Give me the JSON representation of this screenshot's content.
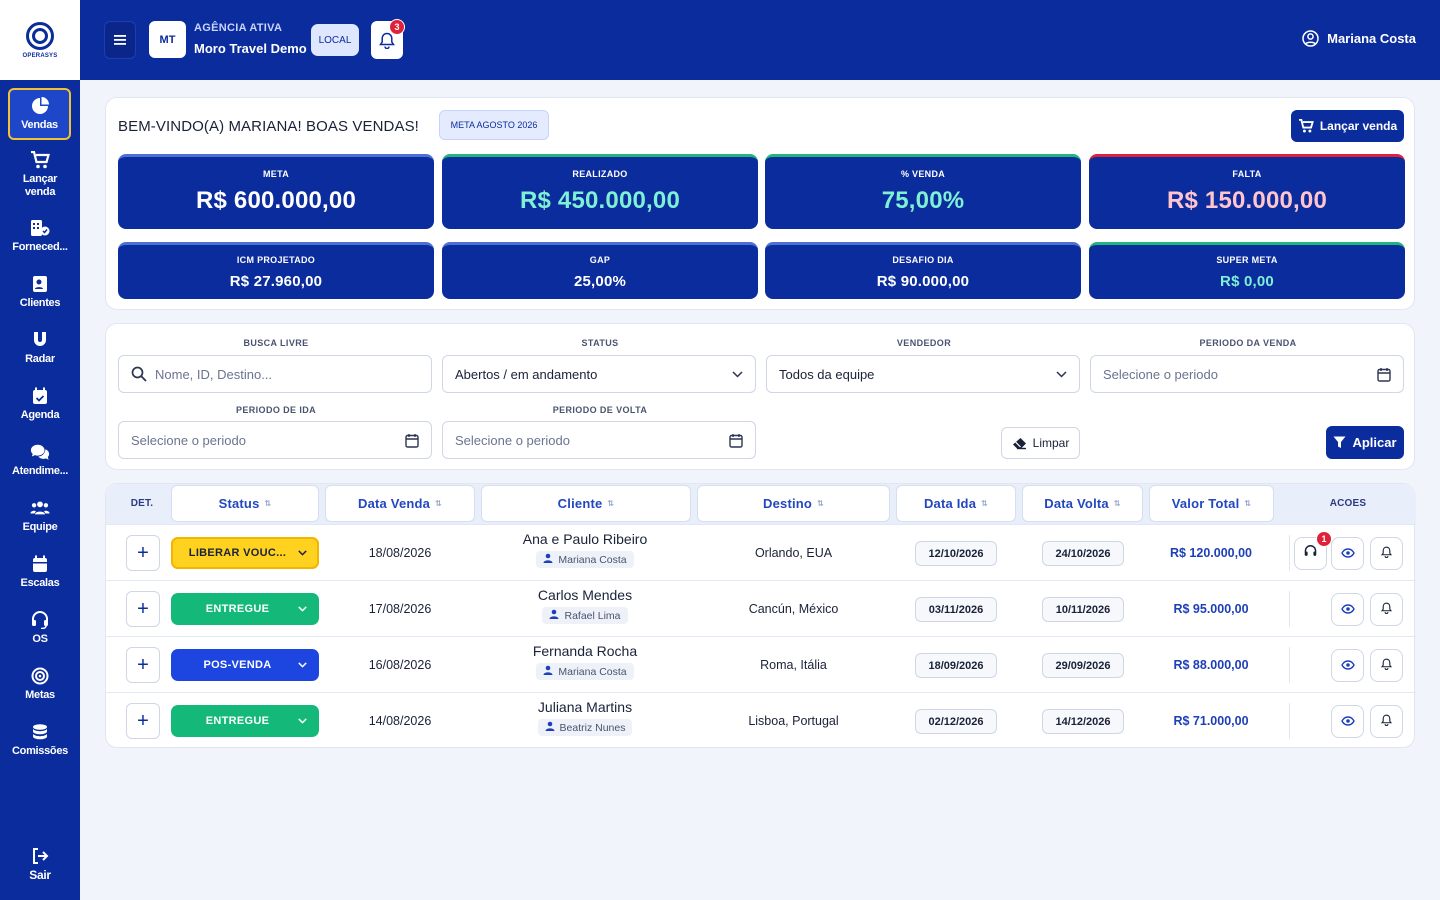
{
  "app": {
    "logo_text": "OPERASYS"
  },
  "sidebar": {
    "items": [
      {
        "label": "Vendas",
        "icon": "pie-chart-icon"
      },
      {
        "label": "Lançar venda",
        "icon": "cart-icon"
      },
      {
        "label": "Forneced...",
        "icon": "supplier-icon"
      },
      {
        "label": "Clientes",
        "icon": "contact-card-icon"
      },
      {
        "label": "Radar",
        "icon": "magnet-icon"
      },
      {
        "label": "Agenda",
        "icon": "calendar-check-icon"
      },
      {
        "label": "Atendime...",
        "icon": "chat-icon"
      },
      {
        "label": "Equipe",
        "icon": "team-icon"
      },
      {
        "label": "Escalas",
        "icon": "calendar-icon"
      },
      {
        "label": "OS",
        "icon": "headset-icon"
      },
      {
        "label": "Metas",
        "icon": "target-icon"
      },
      {
        "label": "Comissões",
        "icon": "coins-icon"
      }
    ],
    "logout": "Sair"
  },
  "header": {
    "agency_initials": "MT",
    "agency_label": "AGÊNCIA ATIVA",
    "agency_name": "Moro Travel Demo",
    "env_chip": "LOCAL",
    "notifications": "3",
    "user_name": "Mariana Costa"
  },
  "summary": {
    "welcome": "BEM-VINDO(A) MARIANA! BOAS VENDAS!",
    "period_chip": "META AGOSTO 2026",
    "new_sale_button": "Lançar venda",
    "kpis": [
      {
        "label": "META",
        "value": "R$ 600.000,00",
        "color": "#ffffff",
        "accent": "#4f6fd6"
      },
      {
        "label": "REALIZADO",
        "value": "R$ 450.000,00",
        "color": "#7ef0d4",
        "accent": "#1fb57c"
      },
      {
        "label": "% VENDA",
        "value": "75,00%",
        "color": "#7ef0d4",
        "accent": "#1fb57c"
      },
      {
        "label": "FALTA",
        "value": "R$ 150.000,00",
        "color": "#ffc4cc",
        "accent": "#e0213a"
      },
      {
        "label": "ICM PROJETADO",
        "value": "R$ 27.960,00",
        "color": "#ffffff",
        "accent": "#4f6fd6"
      },
      {
        "label": "GAP",
        "value": "25,00%",
        "color": "#ffffff",
        "accent": "#4f6fd6"
      },
      {
        "label": "DESAFIO DIA",
        "value": "R$ 90.000,00",
        "color": "#ffffff",
        "accent": "#4f6fd6"
      },
      {
        "label": "SUPER META",
        "value": "R$ 0,00",
        "color": "#7ef0d4",
        "accent": "#1fb57c"
      }
    ]
  },
  "filters": {
    "search": {
      "label": "BUSCA LIVRE",
      "placeholder": "Nome, ID, Destino..."
    },
    "status": {
      "label": "STATUS",
      "value": "Abertos / em andamento"
    },
    "seller": {
      "label": "VENDEDOR",
      "value": "Todos da equipe"
    },
    "sale_period": {
      "label": "PERIODO DA VENDA",
      "placeholder": "Selecione o periodo"
    },
    "departure_period": {
      "label": "PERIODO DE IDA",
      "placeholder": "Selecione o periodo"
    },
    "return_period": {
      "label": "PERIODO DE VOLTA",
      "placeholder": "Selecione o periodo"
    },
    "clear_button": "Limpar",
    "apply_button": "Aplicar"
  },
  "table": {
    "columns": [
      "DET.",
      "Status",
      "Data Venda",
      "Cliente",
      "Destino",
      "Data Ida",
      "Data Volta",
      "Valor Total",
      "ACOES"
    ],
    "rows": [
      {
        "status": "LIBERAR VOUC...",
        "status_color": "#ffd21f",
        "status_text_color": "#1a2238",
        "sale_date": "18/08/2026",
        "client": "Ana e Paulo Ribeiro",
        "seller": "Mariana Costa",
        "destination": "Orlando, EUA",
        "departure": "12/10/2026",
        "return": "24/10/2026",
        "total": "R$ 120.000,00",
        "support_badge": "1"
      },
      {
        "status": "ENTREGUE",
        "status_color": "#14b979",
        "status_text_color": "#ffffff",
        "sale_date": "17/08/2026",
        "client": "Carlos Mendes",
        "seller": "Rafael Lima",
        "destination": "Cancún, México",
        "departure": "03/11/2026",
        "return": "10/11/2026",
        "total": "R$ 95.000,00"
      },
      {
        "status": "POS-VENDA",
        "status_color": "#1d46e0",
        "status_text_color": "#ffffff",
        "sale_date": "16/08/2026",
        "client": "Fernanda Rocha",
        "seller": "Mariana Costa",
        "destination": "Roma, Itália",
        "departure": "18/09/2026",
        "return": "29/09/2026",
        "total": "R$ 88.000,00"
      },
      {
        "status": "ENTREGUE",
        "status_color": "#14b979",
        "status_text_color": "#ffffff",
        "sale_date": "14/08/2026",
        "client": "Juliana Martins",
        "seller": "Beatriz Nunes",
        "destination": "Lisboa, Portugal",
        "departure": "02/12/2026",
        "return": "14/12/2026",
        "total": "R$ 71.000,00"
      }
    ]
  }
}
